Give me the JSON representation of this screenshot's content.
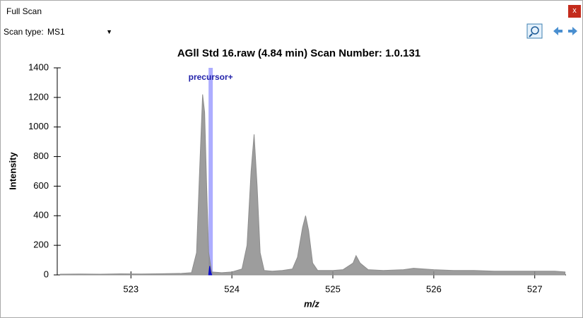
{
  "window": {
    "title": "Full Scan",
    "close": "x"
  },
  "toolbar": {
    "scan_type_label": "Scan type:",
    "scan_type_value": "MS1"
  },
  "chart_data": {
    "type": "line",
    "title": "AGll Std 16.raw  (4.84 min) Scan Number: 1.0.131",
    "x_label": "m/z",
    "y_label": "Intensity",
    "xlim": [
      522.27,
      527.31
    ],
    "xticks": [
      523,
      524,
      525,
      526,
      527
    ],
    "ylim": [
      0,
      1400
    ],
    "yticks": [
      0,
      200,
      400,
      600,
      800,
      1000,
      1200,
      1400
    ],
    "precursor_marker": {
      "label": "precursor+",
      "x": 523.79,
      "color": "#9999ff"
    },
    "series": [
      {
        "name": "Intensity",
        "color": "#8c8c8c",
        "x": [
          522.3,
          522.5,
          522.7,
          522.9,
          523.1,
          523.3,
          523.5,
          523.6,
          523.65,
          523.68,
          523.71,
          523.73,
          523.75,
          523.77,
          523.8,
          523.9,
          524.0,
          524.1,
          524.15,
          524.19,
          524.22,
          524.25,
          524.28,
          524.32,
          524.4,
          524.5,
          524.6,
          524.65,
          524.7,
          524.73,
          524.76,
          524.8,
          524.85,
          525.0,
          525.1,
          525.2,
          525.23,
          525.27,
          525.35,
          525.5,
          525.7,
          525.8,
          526.0,
          526.2,
          526.4,
          526.6,
          526.8,
          527.0,
          527.2,
          527.3
        ],
        "values": [
          5,
          6,
          5,
          7,
          6,
          8,
          10,
          15,
          150,
          700,
          1220,
          1100,
          600,
          150,
          20,
          15,
          20,
          40,
          200,
          700,
          950,
          600,
          150,
          30,
          25,
          30,
          40,
          120,
          320,
          400,
          300,
          80,
          30,
          30,
          35,
          80,
          130,
          80,
          35,
          30,
          35,
          45,
          35,
          30,
          30,
          25,
          25,
          25,
          25,
          20
        ]
      },
      {
        "name": "precursor",
        "color": "#0000cc",
        "x": [
          523.77,
          523.78,
          523.79,
          523.8
        ],
        "values": [
          0,
          60,
          20,
          0
        ]
      }
    ]
  }
}
